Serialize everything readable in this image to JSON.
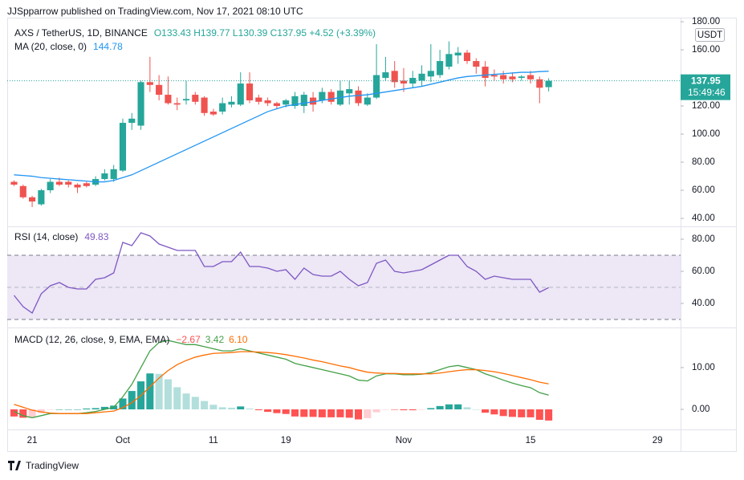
{
  "header": {
    "attribution": "JJSpparrow published on TradingView.com, Nov 17, 2021 08:10 UTC",
    "footer": "TradingView"
  },
  "chart_data": [
    {
      "type": "candlestick",
      "title": "AXS / TetherUS, 1D, BINANCE",
      "readout": "O133.43 H139.77 L130.39 C137.95 +4.52 (+3.39%)",
      "currency": "USDT",
      "last_price_label": "137.95",
      "countdown": "15:49:46",
      "categories": [
        null,
        null,
        "21",
        null,
        null,
        null,
        null,
        null,
        null,
        null,
        null,
        null,
        "Oct",
        null,
        null,
        null,
        null,
        null,
        null,
        null,
        null,
        null,
        "11",
        null,
        null,
        null,
        null,
        null,
        null,
        null,
        "19",
        null,
        null,
        null,
        null,
        null,
        null,
        null,
        null,
        null,
        null,
        null,
        null,
        "Nov",
        null,
        null,
        null,
        null,
        null,
        null,
        null,
        null,
        null,
        null,
        null,
        null,
        null,
        "15",
        null,
        null,
        null,
        null,
        null,
        null,
        null,
        null,
        null,
        null,
        null,
        null,
        null,
        "29"
      ],
      "open": [
        66,
        63,
        55,
        50,
        60,
        66,
        66,
        64,
        65,
        64,
        68,
        68,
        74,
        108,
        106,
        137,
        135,
        128,
        122,
        124,
        128,
        126,
        116,
        116,
        121,
        121,
        136,
        126,
        124,
        122,
        121,
        120,
        120,
        126,
        124,
        130,
        121,
        129,
        131,
        121,
        126,
        140,
        145,
        138,
        136,
        138,
        141,
        142,
        148,
        156,
        158,
        152,
        148,
        142,
        142,
        141,
        140,
        142,
        139,
        133.43,
        null,
        null,
        null,
        null,
        null,
        null,
        null,
        null,
        null,
        null,
        null,
        null
      ],
      "high": [
        67,
        64,
        56,
        61,
        68,
        69,
        67,
        65,
        66,
        70,
        75,
        78,
        111,
        115,
        138,
        155,
        142,
        141,
        126,
        138,
        130,
        127,
        118,
        126,
        127,
        144,
        144,
        128,
        126,
        123,
        125,
        130,
        130,
        130,
        133,
        132,
        138,
        138,
        134,
        129,
        164,
        155,
        152,
        147,
        145,
        149,
        164,
        160,
        166,
        162,
        160,
        154,
        152,
        146,
        145,
        144,
        142,
        145,
        141,
        139.77,
        null,
        null,
        null,
        null,
        null,
        null,
        null,
        null,
        null,
        null,
        null,
        null
      ],
      "low": [
        63,
        54,
        48,
        49,
        58,
        63,
        62,
        58,
        62,
        63,
        67,
        66,
        73,
        103,
        103,
        130,
        124,
        121,
        117,
        121,
        121,
        113,
        113,
        114,
        119,
        120,
        122,
        121,
        120,
        118,
        119,
        118,
        115,
        116,
        122,
        121,
        120,
        121,
        120,
        120,
        125,
        138,
        133,
        130,
        133,
        134,
        137,
        140,
        146,
        150,
        150,
        143,
        134,
        138,
        136,
        137,
        138,
        136,
        122,
        130.39,
        null,
        null,
        null,
        null,
        null,
        null,
        null,
        null,
        null,
        null,
        null,
        null
      ],
      "close": [
        64,
        55,
        52,
        60,
        66,
        64,
        64,
        62,
        63,
        68,
        72,
        75,
        108,
        111,
        137,
        135,
        128,
        122,
        121,
        125,
        123,
        115,
        114,
        122,
        123,
        136,
        124,
        123,
        122,
        120,
        124,
        127,
        128,
        121,
        130,
        123,
        131,
        132,
        122,
        126,
        142,
        144,
        137,
        136,
        140,
        143,
        145,
        152,
        157,
        158,
        152,
        148,
        140,
        141,
        139,
        139,
        141,
        139,
        133,
        137.95,
        null,
        null,
        null,
        null,
        null,
        null,
        null,
        null,
        null,
        null,
        null,
        null
      ],
      "up_color": "#26a69a",
      "down_color": "#ef5350",
      "overlay": {
        "name": "MA (20, close, 0)",
        "value_label": "144.78",
        "color": "#2196f3",
        "values": [
          71,
          70.5,
          70,
          69,
          68.5,
          68,
          67.5,
          67,
          66.5,
          66,
          66,
          67,
          69,
          71,
          74,
          77,
          80,
          83,
          86,
          89,
          92,
          95,
          98,
          101,
          104,
          107,
          110,
          113,
          116,
          118,
          120,
          121,
          122,
          123,
          124,
          125,
          126,
          127,
          127.5,
          128,
          129,
          130,
          131,
          132,
          133,
          134,
          135.5,
          137,
          138.5,
          140,
          141,
          141.5,
          142,
          142.5,
          143,
          143.5,
          144,
          144,
          144.5,
          144.78,
          null,
          null,
          null,
          null,
          null,
          null,
          null,
          null,
          null,
          null,
          null,
          null
        ]
      },
      "ylim": [
        34.3,
        182.9
      ],
      "yticks": [
        {
          "value": 40,
          "label": "40.00"
        },
        {
          "value": 60,
          "label": "60.00"
        },
        {
          "value": 80,
          "label": "80.00"
        },
        {
          "value": 100,
          "label": "100.00"
        },
        {
          "value": 120,
          "label": "120.00"
        },
        {
          "value": 160,
          "label": "160.00"
        },
        {
          "value": 180,
          "label": "180.00"
        }
      ]
    },
    {
      "type": "line",
      "title": "RSI (14, close)",
      "value_label": "49.83",
      "color": "#7e57c2",
      "values": [
        45,
        38,
        34,
        46,
        51,
        53,
        50,
        49,
        49,
        55,
        56,
        59,
        78,
        76,
        84,
        82,
        77,
        75,
        73,
        73,
        73,
        63,
        63,
        66,
        66,
        72,
        63,
        63,
        62,
        60,
        61,
        55,
        62,
        58,
        57,
        57,
        60,
        55,
        51,
        53,
        65,
        67,
        60,
        59,
        60,
        61,
        64,
        67,
        70,
        70,
        63,
        60,
        55,
        57,
        56,
        55,
        55,
        55,
        47,
        49.83,
        null,
        null,
        null,
        null,
        null,
        null,
        null,
        null,
        null,
        null,
        null,
        null
      ],
      "bands": [
        30,
        70
      ],
      "midline": 50,
      "band_color": "#ede7f6",
      "ylim": [
        25,
        87.5
      ],
      "yticks": [
        {
          "value": 40,
          "label": "40.00"
        },
        {
          "value": 60,
          "label": "60.00"
        },
        {
          "value": 80,
          "label": "80.00"
        }
      ]
    },
    {
      "type": "macd",
      "title": "MACD (12, 26, close, 9, EMA, EMA)",
      "readout": [
        "−2.67",
        "3.42",
        "6.10"
      ],
      "macd": {
        "color": "#43a047",
        "values": [
          -0.5,
          -1.5,
          -2,
          -1.5,
          -1,
          -1,
          -1,
          -1,
          -0.8,
          -0.5,
          0,
          0.5,
          3,
          6,
          10,
          14,
          16,
          16.5,
          16,
          15.5,
          15.5,
          15,
          14.5,
          14,
          14,
          14.5,
          14,
          13.5,
          13,
          12.5,
          12,
          11,
          10.5,
          10,
          9.5,
          9,
          8.5,
          8,
          7,
          6.8,
          8,
          8.5,
          8.5,
          8.3,
          8.3,
          8.4,
          8.8,
          9.5,
          10.2,
          10.5,
          10,
          9.5,
          8.5,
          7.8,
          7,
          6.3,
          5.7,
          5.2,
          4,
          3.42,
          null,
          null,
          null,
          null,
          null,
          null,
          null,
          null,
          null,
          null,
          null,
          null
        ]
      },
      "signal": {
        "color": "#ff6d00",
        "values": [
          1.2,
          0.5,
          -0.2,
          -0.6,
          -0.9,
          -1,
          -1,
          -1,
          -1,
          -0.8,
          -0.6,
          -0.4,
          0.4,
          1.6,
          3.3,
          5.4,
          7.5,
          9.3,
          10.7,
          11.7,
          12.5,
          13,
          13.4,
          13.5,
          13.6,
          13.8,
          13.8,
          13.7,
          13.6,
          13.4,
          13.1,
          12.7,
          12.3,
          11.8,
          11.4,
          10.9,
          10.4,
          10,
          9.4,
          8.9,
          8.7,
          8.6,
          8.6,
          8.5,
          8.5,
          8.5,
          8.5,
          8.7,
          9,
          9.3,
          9.5,
          9.5,
          9.3,
          9,
          8.6,
          8.1,
          7.6,
          7.1,
          6.5,
          6.1,
          null,
          null,
          null,
          null,
          null,
          null,
          null,
          null,
          null,
          null,
          null,
          null
        ]
      },
      "histogram": {
        "colors": [
          "#26a69a",
          "#b2dfdb",
          "#ff5252",
          "#ffcdd2"
        ],
        "values": [
          -1.7,
          -2,
          -1.8,
          -0.9,
          -0.1,
          0,
          0,
          0,
          0.2,
          0.3,
          0.6,
          0.9,
          2.6,
          4.4,
          6.7,
          8.6,
          8.5,
          7.2,
          5.3,
          3.8,
          3,
          2,
          1.1,
          0.5,
          0.4,
          0.7,
          0.2,
          -0.2,
          -0.6,
          -0.9,
          -1.1,
          -1.7,
          -1.8,
          -1.8,
          -1.9,
          -1.9,
          -1.9,
          -2,
          -2.4,
          -2.1,
          -0.7,
          -0.1,
          -0.1,
          -0.2,
          -0.2,
          -0.1,
          0.3,
          0.8,
          1.2,
          1.2,
          0.5,
          0,
          -0.8,
          -1.2,
          -1.6,
          -1.8,
          -1.9,
          -1.9,
          -2.5,
          -2.67,
          null,
          null,
          null,
          null,
          null,
          null,
          null,
          null,
          null,
          null,
          null,
          null
        ]
      },
      "ylim": [
        -4.8,
        19.4
      ],
      "yticks": [
        {
          "value": 0,
          "label": "0.00"
        },
        {
          "value": 10,
          "label": "10.00"
        }
      ]
    }
  ]
}
